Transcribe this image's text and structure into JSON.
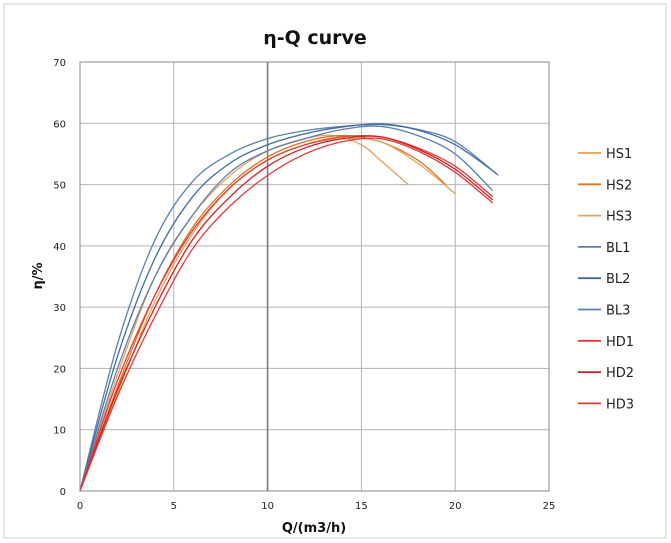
{
  "chart_data": {
    "type": "line",
    "title": "η-Q  curve",
    "xlabel": "Q/(m3/h)",
    "ylabel": "η/%",
    "xlim": [
      0,
      25
    ],
    "ylim": [
      0,
      70
    ],
    "xticks": [
      0,
      5,
      10,
      15,
      20,
      25
    ],
    "yticks": [
      0,
      10,
      20,
      30,
      40,
      50,
      60,
      70
    ],
    "grid": true,
    "legend": "right",
    "series": [
      {
        "name": "HS1",
        "color": "#e8a05a",
        "x": [
          0,
          2,
          4,
          6,
          8,
          10,
          12,
          13.5,
          15,
          16,
          17.5
        ],
        "y": [
          0,
          19,
          35,
          45,
          51.5,
          55.5,
          57.5,
          58,
          56.5,
          54,
          50
        ]
      },
      {
        "name": "HS2",
        "color": "#d9771f",
        "x": [
          0,
          2,
          4,
          6,
          8,
          10,
          12,
          14,
          16,
          18,
          19.5
        ],
        "y": [
          0,
          17,
          32,
          43,
          50,
          54.5,
          57,
          58,
          57,
          54,
          50
        ]
      },
      {
        "name": "HS3",
        "color": "#e8a05a",
        "x": [
          0,
          2,
          4,
          6,
          8,
          10,
          12,
          14,
          16,
          18,
          20
        ],
        "y": [
          0,
          16,
          31,
          42,
          49.5,
          54,
          56.5,
          57.5,
          57,
          53.5,
          48.5
        ]
      },
      {
        "name": "BL1",
        "color": "#5b7fb0",
        "x": [
          0,
          2,
          4,
          6,
          8,
          10,
          12,
          14,
          16,
          18,
          20,
          22.3
        ],
        "y": [
          0,
          24,
          41,
          50.5,
          55,
          57.5,
          58.8,
          59.5,
          59.8,
          59,
          57,
          51.5
        ]
      },
      {
        "name": "BL2",
        "color": "#3f6aa3",
        "x": [
          0,
          2,
          4,
          6,
          8,
          10,
          12,
          14,
          16,
          18,
          20,
          22.2
        ],
        "y": [
          0,
          22,
          38,
          48,
          53.5,
          56.5,
          58.3,
          59.4,
          59.9,
          58.9,
          56.5,
          51.8
        ]
      },
      {
        "name": "BL3",
        "color": "#5b7fb0",
        "x": [
          0,
          2,
          4,
          6,
          8,
          10,
          12,
          14,
          16,
          18,
          20,
          22
        ],
        "y": [
          0,
          20,
          35,
          45,
          52,
          55.5,
          57.5,
          59,
          59.5,
          58,
          55,
          49
        ]
      },
      {
        "name": "HD1",
        "color": "#e03a3a",
        "x": [
          0,
          2,
          4,
          6,
          8,
          10,
          12,
          14,
          16,
          18,
          20,
          22
        ],
        "y": [
          0,
          18,
          32,
          42.5,
          49.5,
          54,
          56.5,
          57.8,
          57.8,
          56,
          53,
          48
        ]
      },
      {
        "name": "HD2",
        "color": "#cc2020",
        "x": [
          0,
          2,
          4,
          6,
          8,
          10,
          12,
          14,
          16,
          18,
          20,
          22
        ],
        "y": [
          0,
          16.5,
          30,
          41,
          48,
          53,
          56,
          57.5,
          57.8,
          55.8,
          52.5,
          47.5
        ]
      },
      {
        "name": "HD3",
        "color": "#e03a3a",
        "x": [
          0,
          2,
          4,
          6,
          8,
          10,
          12,
          14,
          16,
          18,
          20,
          22
        ],
        "y": [
          0,
          15.5,
          28.5,
          39.5,
          46.5,
          51.5,
          55,
          57,
          57.5,
          55.5,
          52,
          47
        ]
      }
    ]
  }
}
